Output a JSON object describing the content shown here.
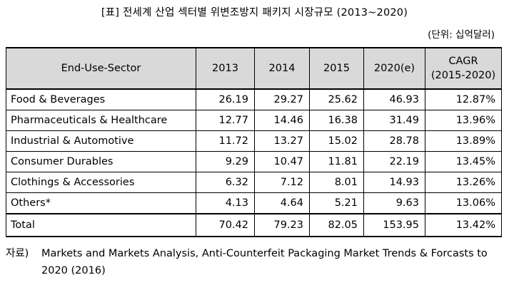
{
  "title": "[표] 전세계 산업 섹터별 위변조방지 패키지 시장규모 (2013~2020)",
  "unit": "(단위: 십억달러)",
  "table": {
    "headers": [
      "End-Use-Sector",
      "2013",
      "2014",
      "2015",
      "2020(e)",
      "CAGR",
      "(2015-2020)"
    ],
    "rows": [
      {
        "sector": "Food & Beverages",
        "y2013": "26.19",
        "y2014": "29.27",
        "y2015": "25.62",
        "y2020": "46.93",
        "cagr": "12.87%"
      },
      {
        "sector": "Pharmaceuticals & Healthcare",
        "y2013": "12.77",
        "y2014": "14.46",
        "y2015": "16.38",
        "y2020": "31.49",
        "cagr": "13.96%"
      },
      {
        "sector": "Industrial & Automotive",
        "y2013": "11.72",
        "y2014": "13.27",
        "y2015": "15.02",
        "y2020": "28.78",
        "cagr": "13.89%"
      },
      {
        "sector": "Consumer Durables",
        "y2013": "9.29",
        "y2014": "10.47",
        "y2015": "11.81",
        "y2020": "22.19",
        "cagr": "13.45%"
      },
      {
        "sector": "Clothings & Accessories",
        "y2013": "6.32",
        "y2014": "7.12",
        "y2015": "8.01",
        "y2020": "14.93",
        "cagr": "13.26%"
      },
      {
        "sector": "Others*",
        "y2013": "4.13",
        "y2014": "4.64",
        "y2015": "5.21",
        "y2020": "9.63",
        "cagr": "13.06%"
      },
      {
        "sector": "Total",
        "y2013": "70.42",
        "y2014": "79.23",
        "y2015": "82.05",
        "y2020": "153.95",
        "cagr": "13.42%"
      }
    ]
  },
  "source": {
    "prefix": "자료)",
    "line1": "Markets and Markets Analysis, Anti-Counterfeit Packaging Market Trends & Forcasts to",
    "line2": "2020 (2016)"
  }
}
